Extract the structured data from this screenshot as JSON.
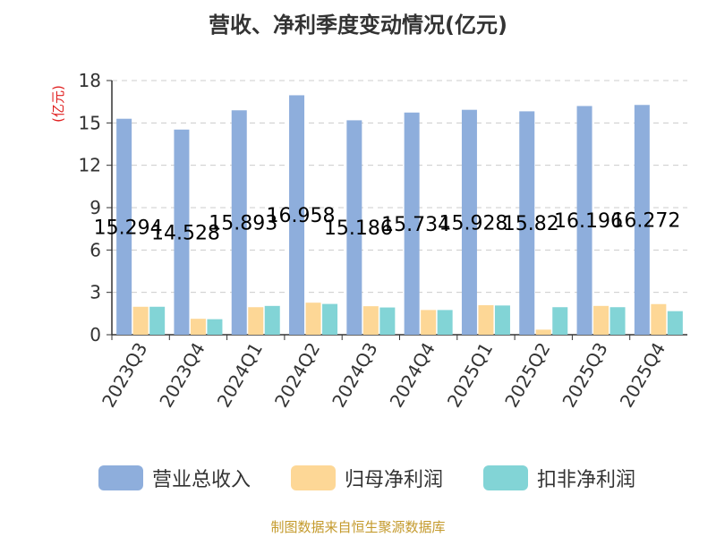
{
  "chart_data": {
    "type": "bar",
    "title": "营收、净利季度变动情况(亿元)",
    "ylabel": "(亿元)",
    "ylim": [
      0,
      18
    ],
    "yticks": [
      0,
      3,
      6,
      9,
      12,
      15,
      18
    ],
    "grid": true,
    "legend_position": "bottom",
    "categories": [
      "2023Q3",
      "2023Q4",
      "2024Q1",
      "2024Q2",
      "2024Q3",
      "2024Q4",
      "2025Q1",
      "2025Q2",
      "2025Q3",
      "2025Q4"
    ],
    "series": [
      {
        "name": "营业总收入",
        "color": "#8eaedc",
        "values": [
          15.294,
          14.528,
          15.893,
          16.958,
          15.186,
          15.734,
          15.928,
          15.82,
          16.196,
          16.272
        ],
        "labels": [
          "15.294",
          "14.528",
          "15.893",
          "16.958",
          "15.186",
          "15.734",
          "15.928",
          "15.82",
          "16.196",
          "16.272"
        ]
      },
      {
        "name": "归母净利润",
        "color": "#fdd796",
        "values": [
          1.98,
          1.13,
          1.95,
          2.27,
          2.02,
          1.75,
          2.09,
          0.36,
          2.04,
          2.17
        ]
      },
      {
        "name": "扣非净利润",
        "color": "#82d4d6",
        "values": [
          1.98,
          1.1,
          2.04,
          2.18,
          1.93,
          1.75,
          2.07,
          1.95,
          1.95,
          1.67
        ]
      }
    ],
    "source": "制图数据来自恒生聚源数据库"
  }
}
